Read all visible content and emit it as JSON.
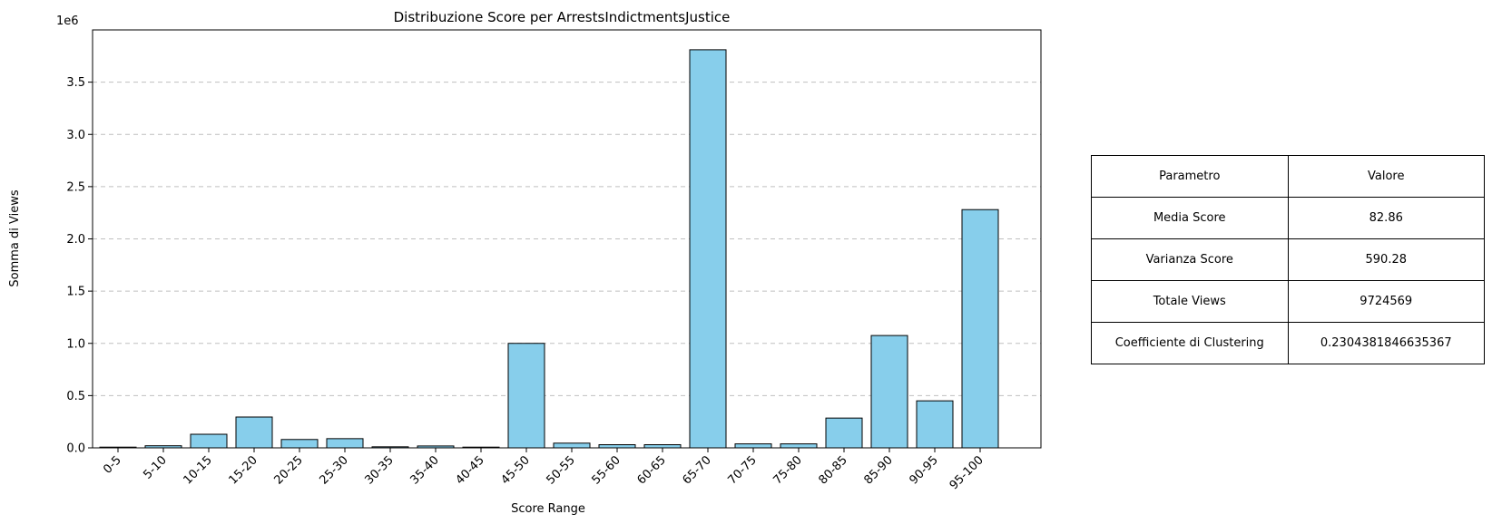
{
  "chart_data": {
    "type": "bar",
    "title": "Distribuzione Score per ArrestsIndictmentsJustice",
    "xlabel": "Score Range",
    "ylabel": "Somma di Views",
    "y_offset_label": "1e6",
    "y_scale": 1000000,
    "ylim": [
      0,
      4000000
    ],
    "yticks": [
      0,
      0.5,
      1.0,
      1.5,
      2.0,
      2.5,
      3.0,
      3.5
    ],
    "ytick_labels": [
      "0.0",
      "0.5",
      "1.0",
      "1.5",
      "2.0",
      "2.5",
      "3.0",
      "3.5"
    ],
    "grid": "y-dashed",
    "categories": [
      "0-5",
      "5-10",
      "10-15",
      "15-20",
      "20-25",
      "25-30",
      "30-35",
      "35-40",
      "40-45",
      "45-50",
      "50-55",
      "55-60",
      "60-65",
      "65-70",
      "70-75",
      "75-80",
      "80-85",
      "85-90",
      "90-95",
      "95-100"
    ],
    "values": [
      5000,
      20000,
      130000,
      295000,
      80000,
      88000,
      10000,
      18000,
      4000,
      1000000,
      45000,
      30000,
      30000,
      3810000,
      38000,
      38000,
      285000,
      1075000,
      450000,
      2280000
    ],
    "bar_color": "#87ceeb",
    "bar_edge_color": "#000000"
  },
  "table": {
    "header": [
      "Parametro",
      "Valore"
    ],
    "rows": [
      [
        "Media Score",
        "82.86"
      ],
      [
        "Varianza Score",
        "590.28"
      ],
      [
        "Totale Views",
        "9724569"
      ],
      [
        "Coefficiente di Clustering",
        "0.2304381846635367"
      ]
    ]
  }
}
